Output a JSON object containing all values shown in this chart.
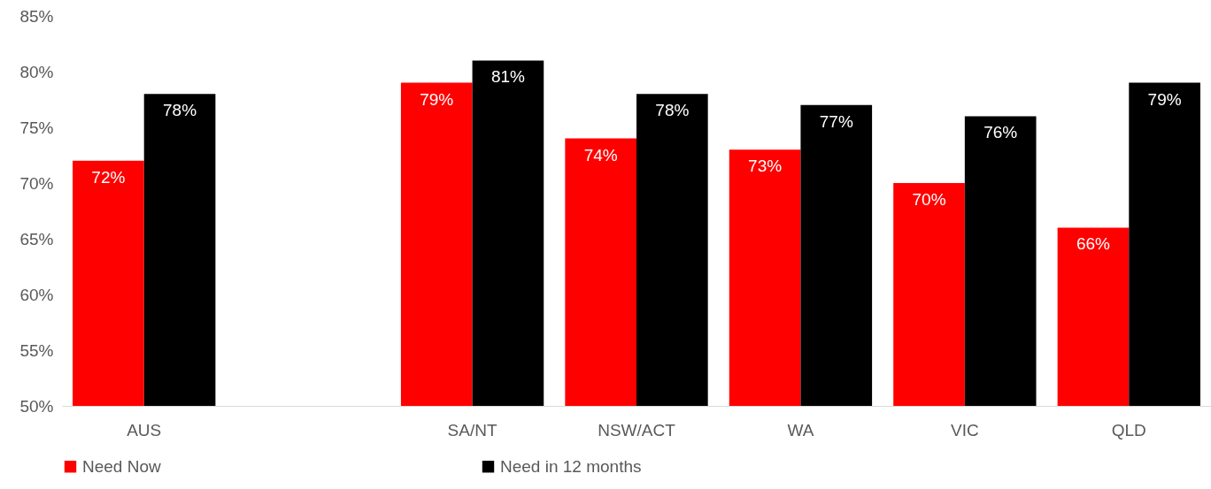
{
  "chart_data": {
    "type": "bar",
    "categories": [
      "AUS",
      null,
      "SA/NT",
      "NSW/ACT",
      "WA",
      "VIC",
      "QLD"
    ],
    "series": [
      {
        "name": "Need Now",
        "color": "#ff0000",
        "values": [
          72,
          null,
          79,
          74,
          73,
          70,
          66
        ],
        "value_labels": [
          "72%",
          null,
          "79%",
          "74%",
          "73%",
          "70%",
          "66%"
        ]
      },
      {
        "name": "Need in 12 months",
        "color": "#000000",
        "values": [
          78,
          null,
          81,
          78,
          77,
          76,
          79
        ],
        "value_labels": [
          "78%",
          null,
          "81%",
          "78%",
          "77%",
          "76%",
          "79%"
        ]
      }
    ],
    "ylim": [
      50,
      85
    ],
    "yticks": [
      {
        "value": 50,
        "label": "50%"
      },
      {
        "value": 55,
        "label": "55%"
      },
      {
        "value": 60,
        "label": "60%"
      },
      {
        "value": 65,
        "label": "65%"
      },
      {
        "value": 70,
        "label": "70%"
      },
      {
        "value": 75,
        "label": "75%"
      },
      {
        "value": 80,
        "label": "80%"
      },
      {
        "value": 85,
        "label": "85%"
      }
    ],
    "grid": false,
    "legend": "bottom"
  }
}
